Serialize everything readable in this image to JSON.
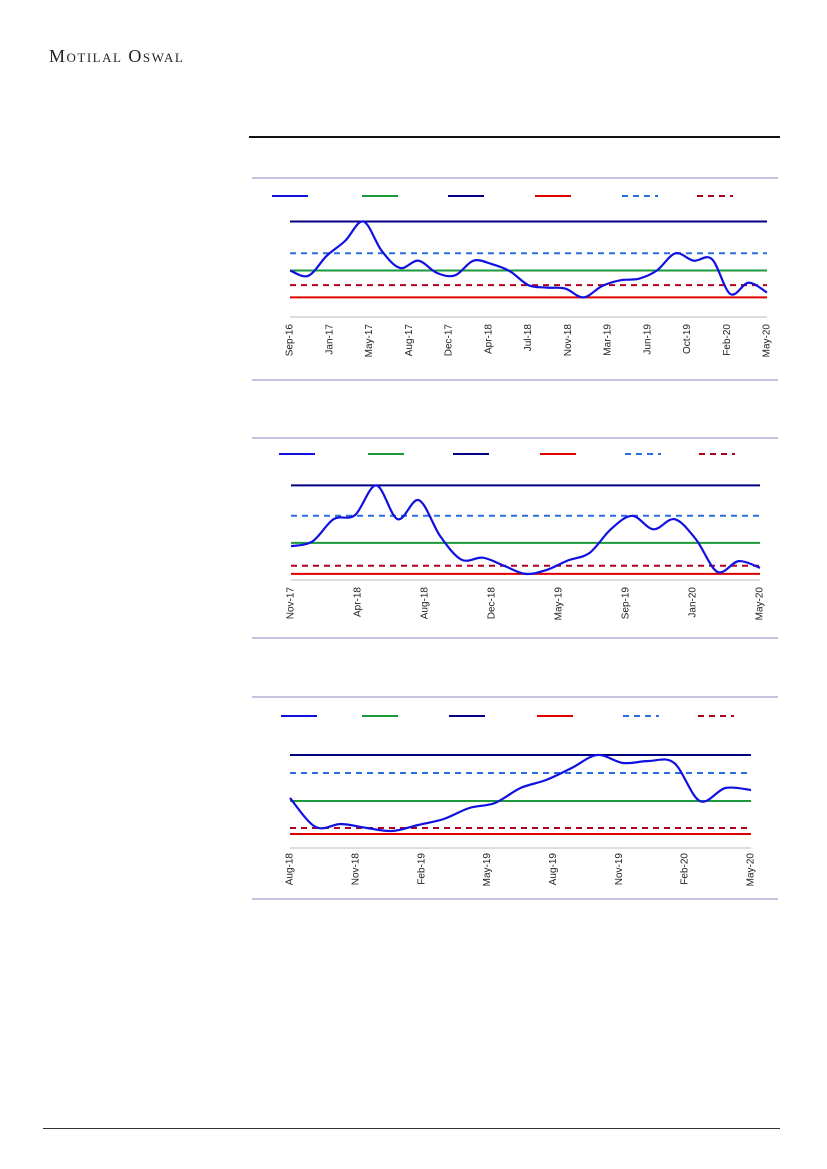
{
  "header": {
    "brand": "Motilal Oswal"
  },
  "colors": {
    "series": "#1010e0",
    "average": "#1a9a3a",
    "max": "#000080",
    "min": "#e00000",
    "plus_one_sd": "#2a6fe0",
    "minus_one_sd": "#b00020",
    "frame": "#8a8ac0"
  },
  "chart_data": [
    {
      "type": "line",
      "x": [
        "Sep-16",
        "Jan-17",
        "May-17",
        "Aug-17",
        "Dec-17",
        "Apr-18",
        "Jul-18",
        "Nov-18",
        "Mar-19",
        "Jun-19",
        "Oct-19",
        "Feb-20",
        "May-20"
      ],
      "series_values": [
        30.0,
        28.9,
        33.0,
        36.0,
        40.0,
        34.0,
        30.5,
        32.0,
        29.5,
        29.0,
        32.0,
        31.3,
        29.8,
        27.0,
        26.5,
        26.3,
        24.5,
        26.8,
        28.0,
        28.3,
        30.0,
        33.5,
        32.0,
        32.3,
        25.2,
        27.5,
        25.5
      ],
      "reference_lines": {
        "average": 30.0,
        "max": 40.0,
        "min": 24.5,
        "plus_one_sd": 33.5,
        "minus_one_sd": 27.0
      },
      "ylim": [
        20.5,
        40.5
      ],
      "grid": false,
      "legend": "top"
    },
    {
      "type": "line",
      "x": [
        "Nov-17",
        "Apr-18",
        "Aug-18",
        "Dec-18",
        "May-19",
        "Sep-19",
        "Jan-20",
        "May-20"
      ],
      "series_values": [
        27.5,
        28.2,
        31.5,
        32.1,
        36.5,
        31.5,
        34.3,
        29.0,
        25.5,
        25.8,
        24.6,
        23.4,
        24.0,
        25.4,
        26.5,
        30.0,
        32.0,
        30.0,
        31.5,
        28.5,
        23.7,
        25.3,
        24.3
      ],
      "reference_lines": {
        "average": 28.0,
        "max": 36.5,
        "min": 23.4,
        "plus_one_sd": 32.0,
        "minus_one_sd": 24.6
      },
      "ylim": [
        22.5,
        37.0
      ],
      "grid": false,
      "legend": "top"
    },
    {
      "type": "line",
      "x": [
        "Aug-18",
        "Nov-18",
        "Feb-19",
        "May-19",
        "Aug-19",
        "Nov-19",
        "Feb-20",
        "May-20"
      ],
      "series_values": [
        23.5,
        20.6,
        20.9,
        20.5,
        20.2,
        20.8,
        21.4,
        22.5,
        23.0,
        24.5,
        25.3,
        26.5,
        27.8,
        27.0,
        27.2,
        27.0,
        23.2,
        24.5,
        24.3
      ],
      "reference_lines": {
        "average": 23.2,
        "max": 27.8,
        "min": 19.9,
        "plus_one_sd": 26.0,
        "minus_one_sd": 20.5
      },
      "ylim": [
        18.5,
        28.3
      ],
      "grid": false,
      "legend": "top"
    }
  ]
}
